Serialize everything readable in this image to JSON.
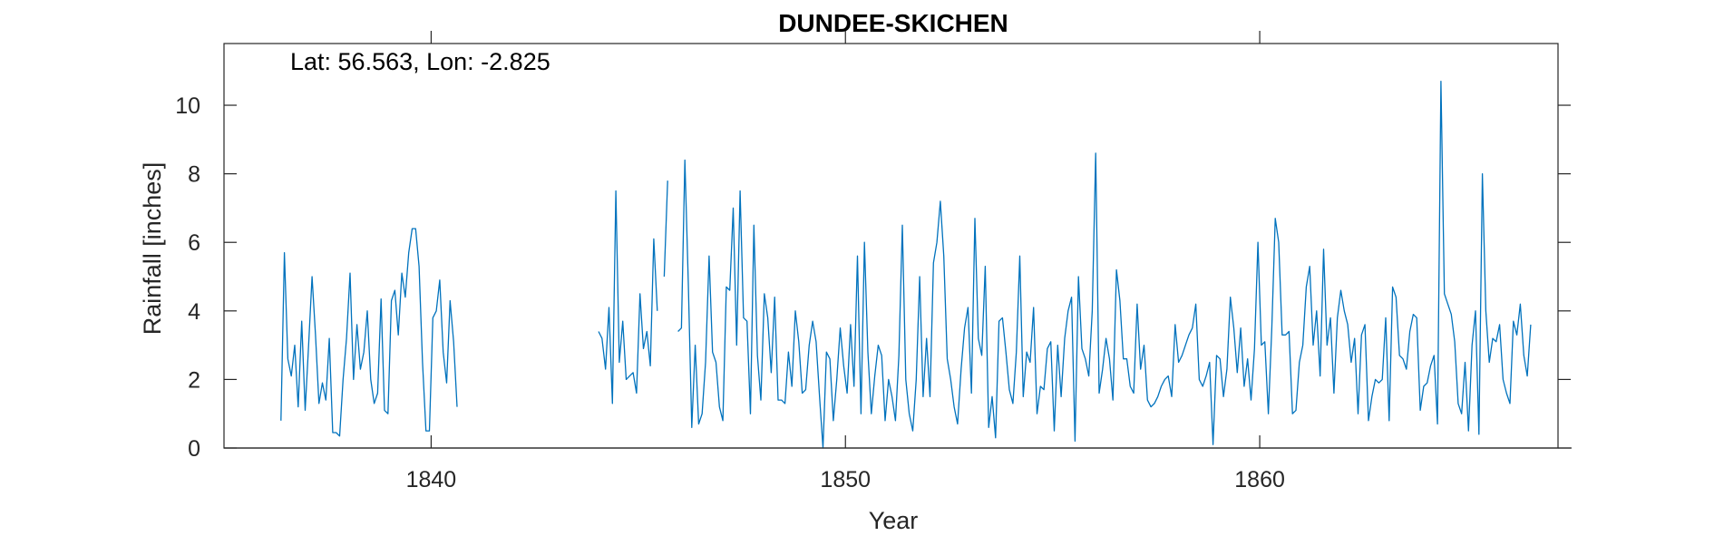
{
  "chart_data": {
    "type": "line",
    "title": "DUNDEE-SKICHEN",
    "annotation": "Lat: 56.563, Lon: -2.825",
    "xlabel": "Year",
    "ylabel": "Rainfall [inches]",
    "xlim": [
      1835,
      1867.2
    ],
    "ylim": [
      0,
      11.8
    ],
    "xticks": [
      1840,
      1850,
      1860
    ],
    "yticks": [
      0,
      2,
      4,
      6,
      8,
      10
    ],
    "grid": false,
    "legend": "none",
    "line_color": "#0072BD",
    "series": [
      {
        "x_start": 1836.375,
        "step": 0.08333,
        "values": [
          0.8,
          5.7,
          2.6,
          2.1,
          3.0,
          1.2,
          3.7,
          1.1,
          3.0,
          5.0,
          3.3,
          1.3,
          1.9,
          1.4,
          3.2,
          0.45,
          0.45,
          0.35,
          2.0,
          3.2,
          5.1,
          2.0,
          3.6,
          2.3,
          2.8,
          4.0,
          2.0,
          1.3,
          1.6,
          4.35,
          1.1,
          1.0,
          4.3,
          4.6,
          3.3,
          5.1,
          4.4,
          5.7,
          6.4,
          6.4,
          5.3,
          2.5,
          0.5,
          0.5,
          3.8,
          4.0,
          4.9,
          2.8,
          1.9,
          4.3,
          3.1,
          1.2,
          null,
          null,
          null,
          null,
          null,
          null,
          null,
          null,
          null,
          null,
          null,
          null,
          null,
          null,
          null,
          null,
          null,
          null,
          null,
          null,
          null,
          null,
          null,
          null,
          null,
          null,
          null,
          null,
          null,
          null,
          null,
          null,
          null,
          null,
          null,
          null,
          null,
          null,
          null,
          null,
          3.4,
          3.2,
          2.3,
          4.1,
          1.3,
          7.5,
          2.5,
          3.7,
          2.0,
          2.1,
          2.2,
          1.6,
          4.5,
          2.9,
          3.4,
          2.4,
          6.1,
          4.0,
          null,
          5.0,
          7.8,
          null,
          null,
          3.4,
          3.5,
          8.4,
          4.8,
          0.6,
          3.0,
          0.7,
          1.0,
          2.5,
          5.6,
          2.8,
          2.5,
          1.2,
          0.8,
          4.7,
          4.6,
          7.0,
          3.0,
          7.5,
          3.8,
          3.7,
          1.0,
          6.5,
          2.7,
          1.4,
          4.5,
          3.8,
          2.2,
          4.4,
          1.4,
          1.4,
          1.3,
          2.8,
          1.8,
          4.0,
          3.1,
          1.6,
          1.7,
          3.0,
          3.7,
          3.1,
          1.5,
          0.0,
          2.8,
          2.6,
          0.8,
          2.0,
          3.5,
          2.4,
          1.6,
          3.6,
          1.8,
          5.6,
          1.0,
          6.0,
          2.8,
          1.0,
          2.1,
          3.0,
          2.7,
          0.8,
          2.0,
          1.5,
          0.8,
          2.7,
          6.5,
          2.0,
          1.0,
          0.5,
          2.0,
          5.0,
          1.5,
          3.2,
          1.5,
          5.4,
          6.0,
          7.2,
          5.6,
          2.6,
          2.0,
          1.2,
          0.7,
          2.3,
          3.5,
          4.1,
          1.6,
          6.7,
          3.2,
          2.7,
          5.3,
          0.6,
          1.5,
          0.3,
          3.7,
          3.8,
          2.8,
          1.7,
          1.3,
          2.8,
          5.6,
          1.5,
          2.8,
          2.5,
          4.1,
          1.0,
          1.8,
          1.7,
          2.9,
          3.1,
          0.5,
          3.0,
          1.5,
          3.2,
          4.0,
          4.4,
          0.2,
          5.0,
          2.9,
          2.6,
          2.1,
          4.0,
          8.6,
          1.6,
          2.3,
          3.2,
          2.6,
          1.4,
          5.2,
          4.3,
          2.6,
          2.6,
          1.8,
          1.6,
          4.2,
          2.3,
          3.0,
          1.4,
          1.2,
          1.3,
          1.5,
          1.8,
          2.0,
          2.1,
          1.5,
          3.6,
          2.5,
          2.7,
          3.0,
          3.3,
          3.5,
          4.2,
          2.0,
          1.8,
          2.1,
          2.5,
          0.1,
          2.7,
          2.6,
          1.5,
          2.3,
          4.4,
          3.5,
          2.2,
          3.5,
          1.8,
          2.6,
          1.4,
          2.9,
          6.0,
          3.0,
          3.1,
          1.0,
          3.5,
          6.7,
          6.0,
          3.3,
          3.3,
          3.4,
          1.0,
          1.1,
          2.5,
          3.0,
          4.7,
          5.3,
          3.0,
          4.0,
          2.1,
          5.8,
          3.0,
          3.8,
          1.6,
          3.8,
          4.6,
          4.0,
          3.6,
          2.5,
          3.2,
          1.0,
          3.3,
          3.6,
          0.8,
          1.5,
          2.0,
          1.9,
          2.0,
          3.8,
          0.8,
          4.7,
          4.4,
          2.7,
          2.6,
          2.3,
          3.4,
          3.9,
          3.8,
          1.1,
          1.8,
          1.9,
          2.4,
          2.7,
          0.7,
          10.7,
          4.5,
          4.2,
          3.9,
          3.1,
          1.3,
          1.0,
          2.5,
          0.5,
          3.0,
          4.0,
          0.4,
          8.0,
          4.0,
          2.5,
          3.2,
          3.1,
          3.6,
          2.0,
          1.6,
          1.3,
          3.7,
          3.3,
          4.2,
          2.7,
          2.1,
          3.6
        ]
      }
    ]
  }
}
